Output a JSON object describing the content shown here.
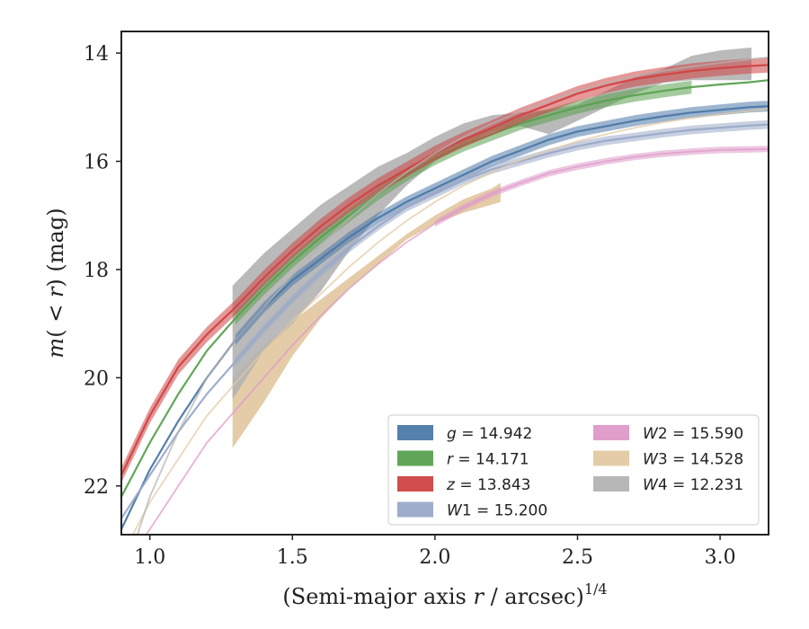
{
  "chart_data": {
    "type": "line",
    "xlabel_text": "(Semi-major axis ",
    "xlabel_var": "r",
    "xlabel_tail": " / arcsec)",
    "xlabel_sup": "1/4",
    "ylabel_m": "m",
    "ylabel_paren": "(",
    "ylabel_cond": " < r",
    "ylabel_tail": ") (mag)",
    "xlim": [
      0.9,
      3.17
    ],
    "ylim": [
      22.9,
      13.6
    ],
    "y_inverted": true,
    "x_ticks": [
      1.0,
      1.5,
      2.0,
      2.5,
      3.0
    ],
    "x_tick_labels": [
      "1.0",
      "1.5",
      "2.0",
      "2.5",
      "3.0"
    ],
    "y_ticks": [
      14,
      16,
      18,
      20,
      22
    ],
    "y_tick_labels": [
      "14",
      "16",
      "18",
      "20",
      "22"
    ],
    "grid": false,
    "legend_position": "lower-right",
    "series": [
      {
        "name": "g",
        "value": "14.942",
        "color": "#4c78a8",
        "x": [
          0.9,
          1.0,
          1.1,
          1.2,
          1.3,
          1.4,
          1.5,
          1.6,
          1.7,
          1.8,
          1.9,
          2.0,
          2.1,
          2.2,
          2.3,
          2.4,
          2.5,
          2.6,
          2.7,
          2.8,
          2.9,
          3.0,
          3.1,
          3.17
        ],
        "y": [
          22.8,
          21.7,
          20.8,
          20.0,
          19.3,
          18.7,
          18.2,
          17.8,
          17.4,
          17.05,
          16.75,
          16.5,
          16.25,
          16.0,
          15.8,
          15.6,
          15.45,
          15.35,
          15.25,
          15.17,
          15.1,
          15.05,
          15.0,
          14.98
        ],
        "band": [
          1.3,
          3.17
        ],
        "band_width": 0.1
      },
      {
        "name": "r",
        "value": "14.171",
        "color": "#59a14f",
        "x": [
          0.9,
          1.0,
          1.1,
          1.2,
          1.3,
          1.4,
          1.5,
          1.6,
          1.7,
          1.8,
          1.9,
          2.0,
          2.1,
          2.2,
          2.3,
          2.4,
          2.5,
          2.6,
          2.7,
          2.8,
          2.9,
          3.0,
          3.1,
          3.17
        ],
        "y": [
          22.2,
          21.2,
          20.3,
          19.5,
          18.9,
          18.35,
          17.85,
          17.4,
          17.0,
          16.6,
          16.25,
          15.95,
          15.7,
          15.5,
          15.3,
          15.15,
          15.0,
          14.88,
          14.78,
          14.7,
          14.63,
          14.58,
          14.54,
          14.5
        ],
        "band": [
          1.3,
          2.95
        ],
        "band_width": 0.12
      },
      {
        "name": "z",
        "value": "13.843",
        "color": "#d04343",
        "x": [
          0.9,
          1.0,
          1.1,
          1.2,
          1.3,
          1.4,
          1.5,
          1.6,
          1.7,
          1.8,
          1.9,
          2.0,
          2.1,
          2.2,
          2.3,
          2.4,
          2.5,
          2.6,
          2.7,
          2.8,
          2.9,
          3.0,
          3.1,
          3.17
        ],
        "y": [
          21.8,
          20.7,
          19.8,
          19.2,
          18.7,
          18.15,
          17.65,
          17.2,
          16.8,
          16.45,
          16.15,
          15.85,
          15.6,
          15.38,
          15.15,
          14.95,
          14.75,
          14.6,
          14.48,
          14.4,
          14.33,
          14.28,
          14.24,
          14.22
        ],
        "band": [
          0.9,
          3.17
        ],
        "band_width": 0.14
      },
      {
        "name": "W1",
        "value": "15.200",
        "color": "#9aa9c9",
        "x": [
          0.9,
          1.0,
          1.1,
          1.2,
          1.3,
          1.4,
          1.5,
          1.6,
          1.7,
          1.8,
          1.9,
          2.0,
          2.1,
          2.2,
          2.3,
          2.4,
          2.5,
          2.6,
          2.7,
          2.8,
          2.9,
          3.0,
          3.1,
          3.17
        ],
        "y": [
          22.6,
          21.8,
          21.0,
          20.3,
          19.7,
          19.1,
          18.55,
          18.05,
          17.6,
          17.2,
          16.85,
          16.6,
          16.35,
          16.15,
          16.0,
          15.85,
          15.72,
          15.62,
          15.55,
          15.48,
          15.42,
          15.38,
          15.34,
          15.32
        ],
        "band": [
          1.3,
          3.17
        ],
        "band_width": 0.08
      },
      {
        "name": "W2",
        "value": "15.590",
        "color": "#df99c8",
        "x": [
          0.9,
          1.0,
          1.1,
          1.2,
          1.3,
          1.4,
          1.5,
          1.6,
          1.7,
          1.8,
          1.9,
          2.0,
          2.1,
          2.2,
          2.3,
          2.4,
          2.5,
          2.6,
          2.7,
          2.8,
          2.9,
          3.0,
          3.1,
          3.17
        ],
        "y": [
          23.6,
          22.8,
          22.0,
          21.2,
          20.6,
          20.0,
          19.4,
          18.85,
          18.35,
          17.9,
          17.5,
          17.15,
          16.85,
          16.6,
          16.4,
          16.22,
          16.1,
          16.0,
          15.92,
          15.86,
          15.82,
          15.79,
          15.78,
          15.77
        ],
        "band": [
          2.0,
          3.17
        ],
        "band_width": 0.06
      },
      {
        "name": "W3",
        "value": "14.528",
        "color": "#e3c9a3",
        "x": [
          0.9,
          1.0,
          1.1,
          1.2,
          1.3,
          1.4,
          1.5,
          1.6,
          1.7,
          1.8,
          1.9,
          2.0,
          2.1,
          2.2,
          2.3,
          2.4,
          2.5,
          2.6,
          2.7,
          2.8,
          2.9,
          3.0,
          3.1,
          3.17
        ],
        "y": [
          23.3,
          22.3,
          21.5,
          20.7,
          20.1,
          19.5,
          18.95,
          18.45,
          17.95,
          17.5,
          17.1,
          16.75,
          16.45,
          16.2,
          15.98,
          15.8,
          15.63,
          15.5,
          15.38,
          15.28,
          15.2,
          15.13,
          15.07,
          15.03
        ],
        "band_x": [
          1.29,
          1.4,
          1.5,
          1.6,
          1.7,
          1.8,
          1.9,
          2.0,
          2.1,
          2.2,
          2.23
        ],
        "band_lo": [
          21.3,
          20.45,
          19.6,
          18.9,
          18.35,
          17.9,
          17.45,
          17.15,
          16.95,
          16.8,
          16.75
        ],
        "band_hi": [
          20.0,
          19.4,
          18.95,
          18.55,
          18.15,
          17.75,
          17.35,
          17.0,
          16.7,
          16.5,
          16.4
        ]
      },
      {
        "name": "W4",
        "value": "12.231",
        "color": "#b3b3b3",
        "x": [
          0.95,
          1.0,
          1.1,
          1.2,
          1.3,
          1.4,
          1.5,
          1.6,
          1.7,
          1.8,
          1.9,
          2.0,
          2.1,
          2.2,
          2.3,
          2.4,
          2.5,
          2.6,
          2.7,
          2.8,
          2.9,
          3.0,
          3.1,
          3.17
        ],
        "y": [
          23.0,
          22.2,
          21.0,
          20.0,
          19.3,
          18.7,
          18.1,
          17.55,
          17.05,
          16.6,
          16.2,
          15.85,
          15.55,
          15.3,
          15.08,
          14.88,
          14.7,
          14.55,
          14.43,
          14.33,
          14.25,
          14.18,
          14.12,
          14.08
        ],
        "band_x": [
          1.29,
          1.4,
          1.5,
          1.6,
          1.7,
          1.8,
          1.9,
          2.0,
          2.1,
          2.2,
          2.3,
          2.4,
          2.5,
          2.6,
          2.7,
          2.8,
          2.9,
          3.0,
          3.1,
          3.11
        ],
        "band_lo": [
          20.4,
          19.5,
          19.0,
          18.4,
          17.65,
          17.0,
          16.45,
          16.0,
          15.7,
          15.45,
          15.35,
          15.5,
          15.25,
          15.0,
          14.75,
          14.55,
          14.5,
          14.5,
          14.5,
          14.5
        ],
        "band_hi": [
          18.3,
          17.7,
          17.25,
          16.8,
          16.45,
          16.1,
          15.85,
          15.55,
          15.3,
          15.15,
          15.1,
          15.05,
          14.95,
          14.7,
          14.45,
          14.3,
          14.05,
          13.95,
          13.9,
          13.9
        ]
      }
    ]
  }
}
